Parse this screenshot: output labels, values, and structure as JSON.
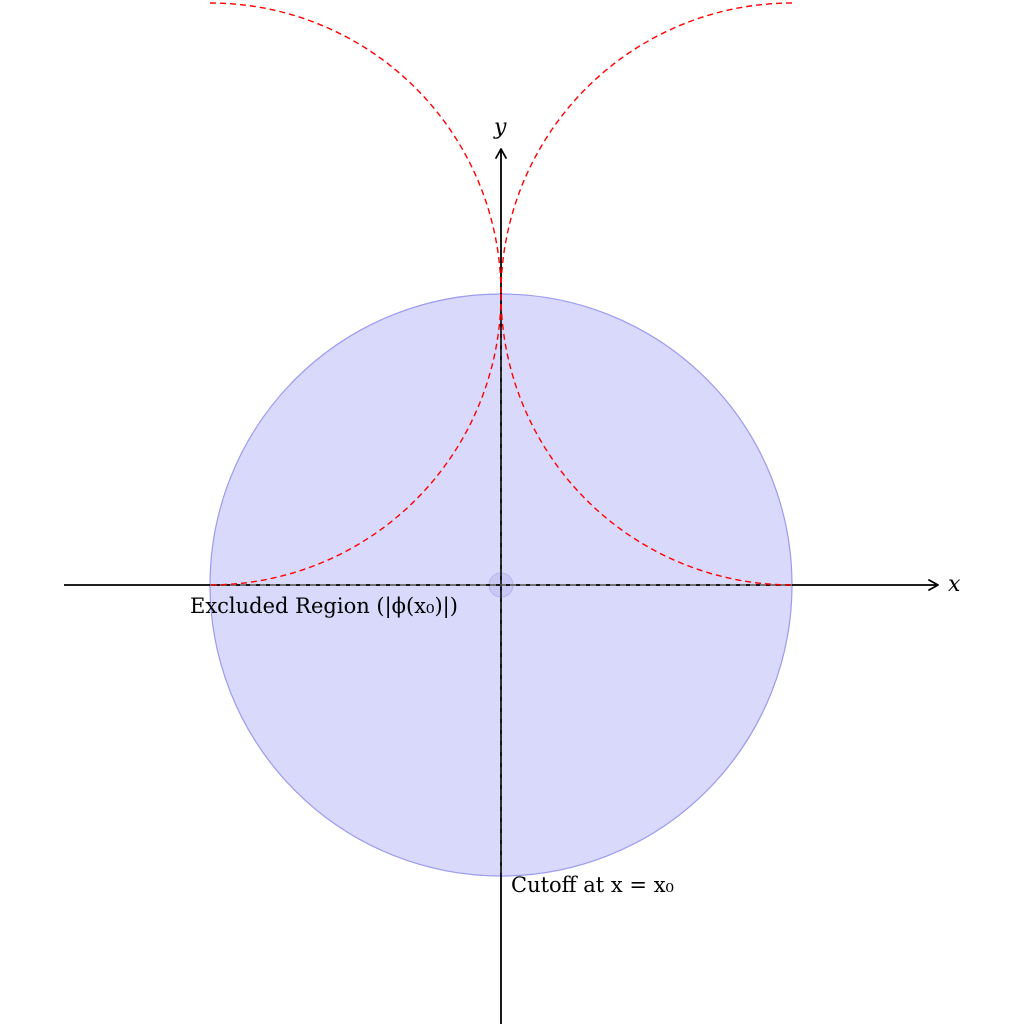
{
  "diagram": {
    "axes": {
      "x_label": "x",
      "y_label": "y"
    },
    "labels": {
      "excluded_region": "Excluded Region (|ϕ(x₀)|)",
      "cutoff": "Cutoff at x = x₀"
    },
    "colors": {
      "background": "#ffffff",
      "axis": "#000000",
      "region_fill": "#d9d9fb",
      "region_stroke": "#9b9bf0",
      "dashed_curve": "#ff0000",
      "cutoff_line": "#333333"
    }
  }
}
